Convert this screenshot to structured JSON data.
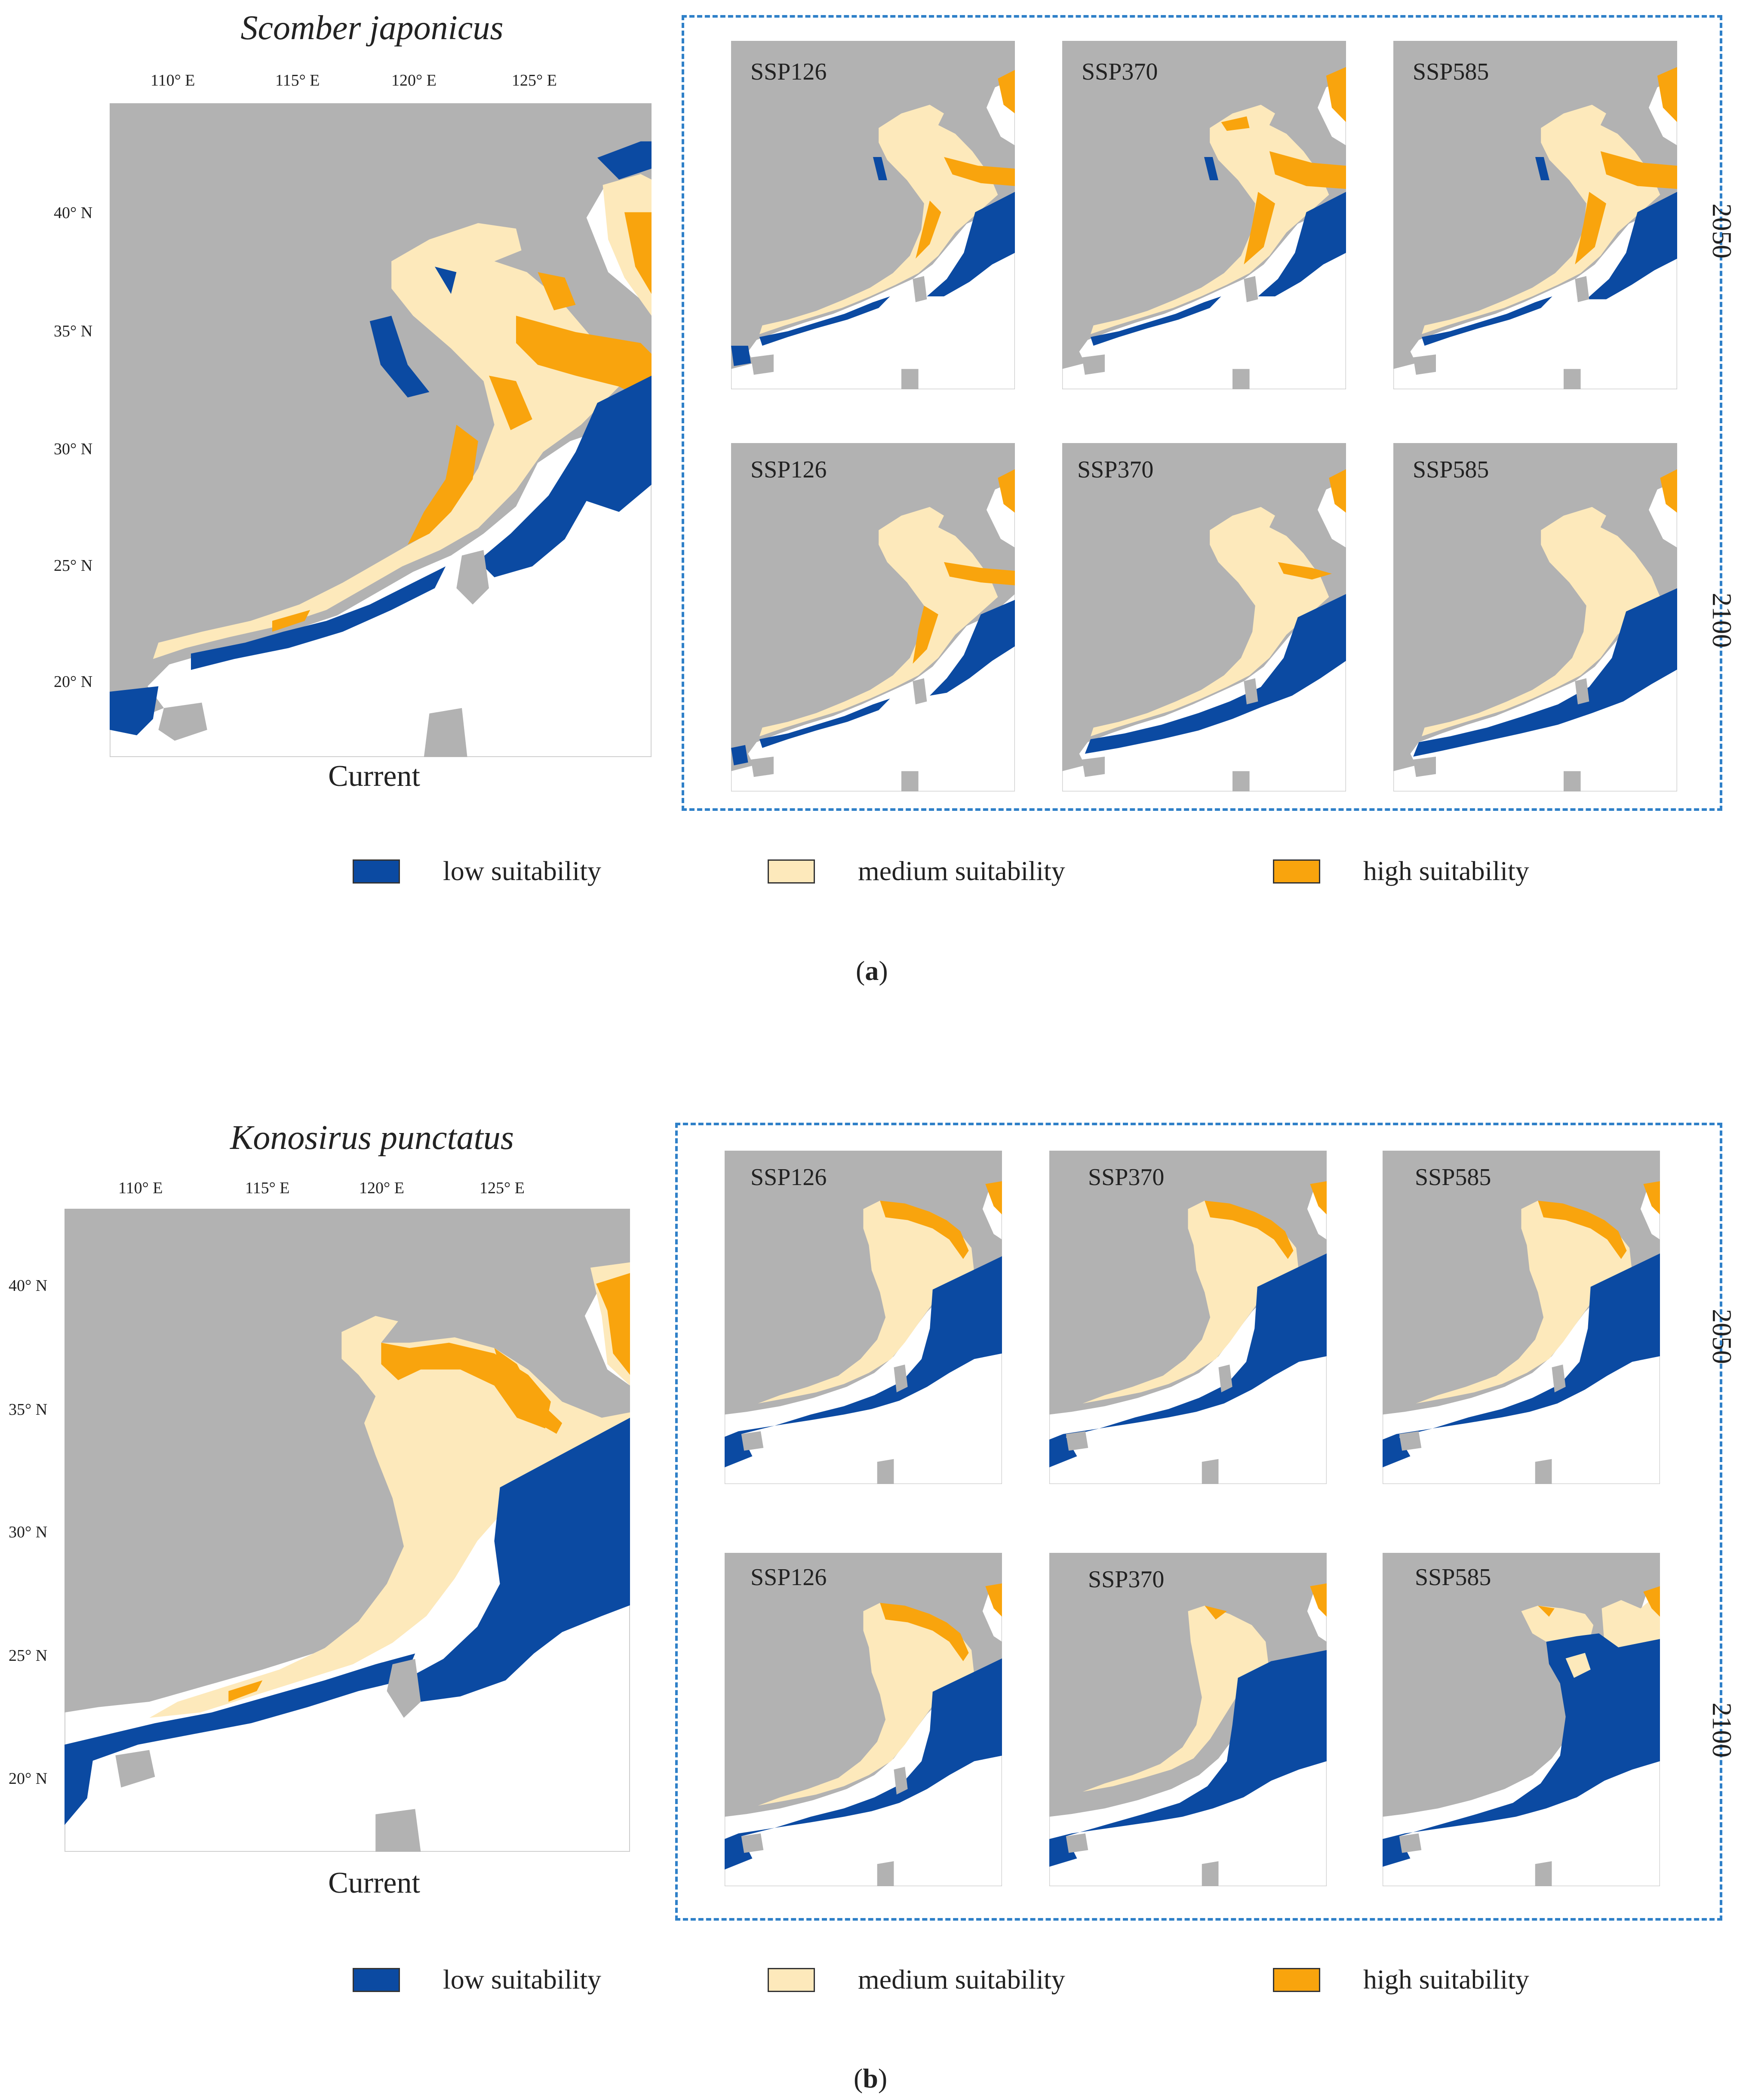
{
  "colors": {
    "land": "#b2b2b2",
    "low": "#0b4aa2",
    "medium": "#fde9bb",
    "high": "#f9a40d",
    "frame": "#2f80c8"
  },
  "legend": {
    "low": "low suitability",
    "medium": "medium suitability",
    "high": "high suitability"
  },
  "panel_a": {
    "species": "Scomber japonicus",
    "current_label": "Current",
    "lon_labels": [
      "110° E",
      "115° E",
      "120° E",
      "125° E"
    ],
    "lat_labels": [
      "40° N",
      "35° N",
      "30° N",
      "25° N",
      "20° N"
    ],
    "years": [
      "2050",
      "2100"
    ],
    "scenarios": [
      "SSP126",
      "SSP370",
      "SSP585"
    ],
    "fig_label": "a"
  },
  "panel_b": {
    "species": "Konosirus punctatus",
    "current_label": "Current",
    "lon_labels": [
      "110° E",
      "115° E",
      "120° E",
      "125° E"
    ],
    "lat_labels": [
      "40° N",
      "35° N",
      "30° N",
      "25° N",
      "20° N"
    ],
    "years": [
      "2050",
      "2100"
    ],
    "scenarios": [
      "SSP126",
      "SSP370",
      "SSP585"
    ],
    "fig_label": "b"
  }
}
